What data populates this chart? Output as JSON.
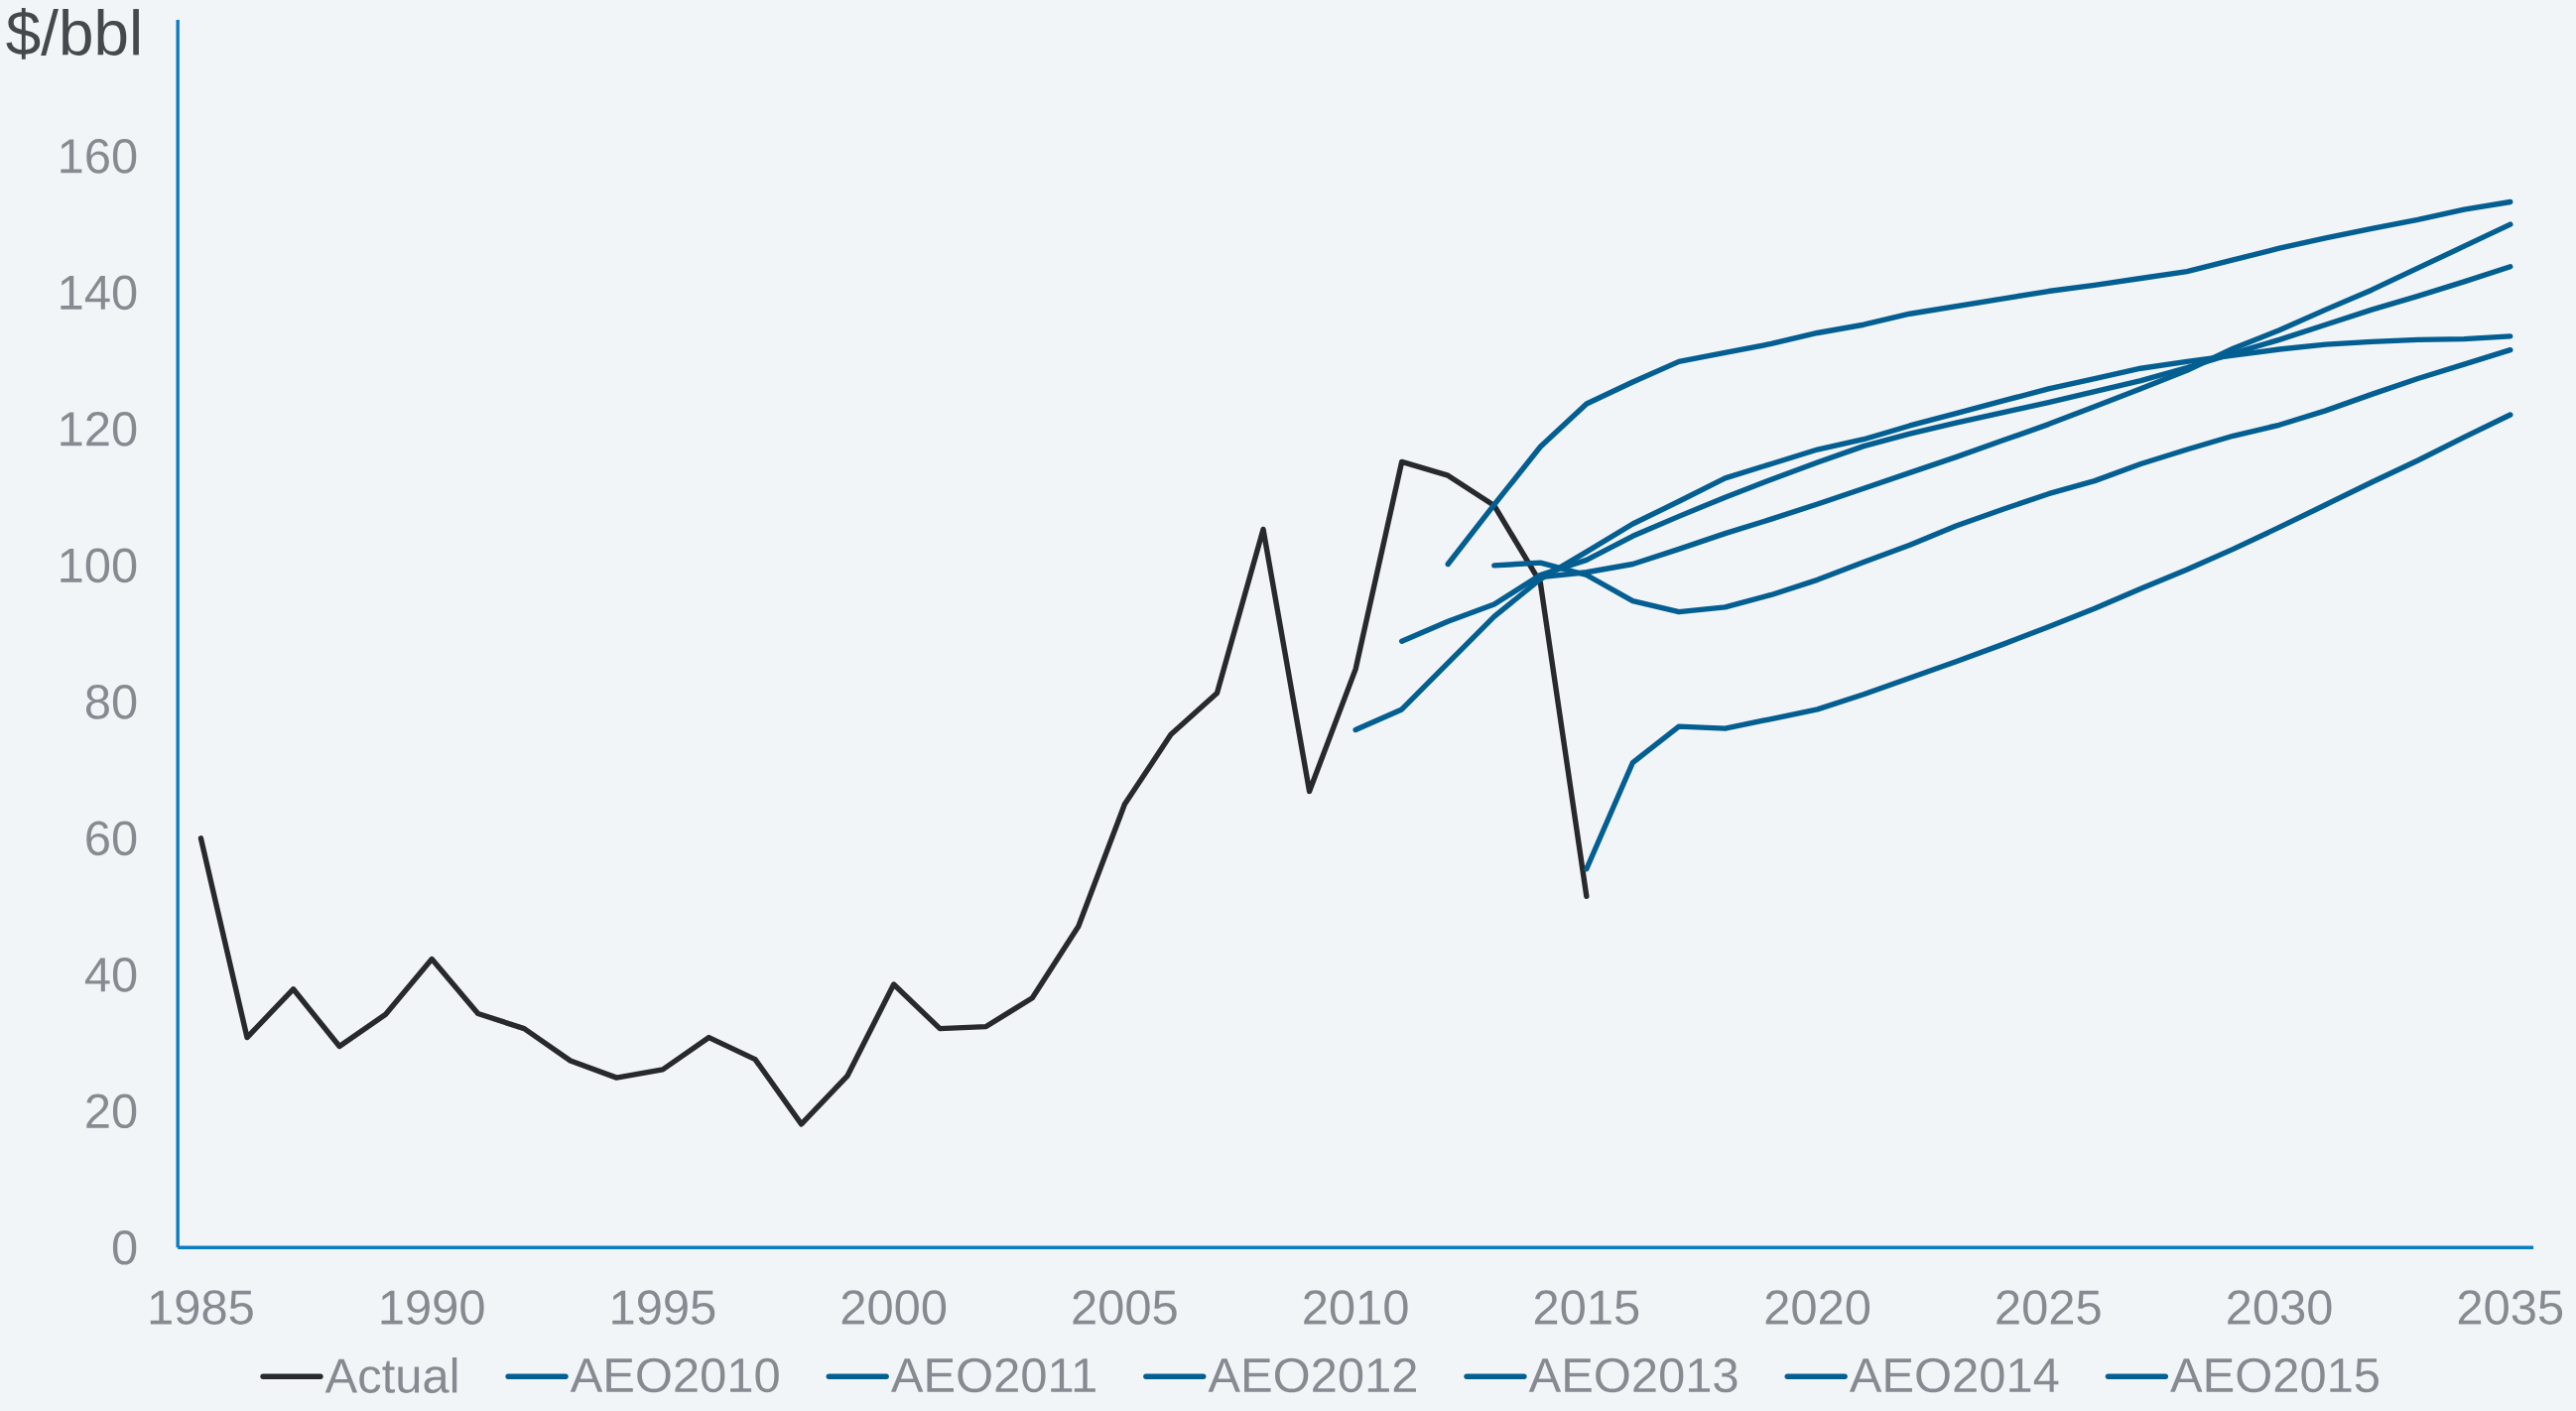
{
  "chart_data": {
    "type": "line",
    "ylabel": "$/bbl",
    "xlim": [
      1984.5,
      2035.5
    ],
    "xticks": [
      1985,
      1990,
      1995,
      2000,
      2005,
      2010,
      2015,
      2020,
      2025,
      2030,
      2035
    ],
    "ylim": [
      0,
      180
    ],
    "yticks": [
      0,
      20,
      40,
      60,
      80,
      100,
      120,
      140,
      160
    ],
    "legend": "bottom",
    "marker": "none",
    "line_style": "solid",
    "series": [
      {
        "name": "Actual",
        "color": "#27292d",
        "x": [
          1985,
          1986,
          1987,
          1988,
          1989,
          1990,
          1991,
          1992,
          1993,
          1994,
          1995,
          1996,
          1997,
          1998,
          1999,
          2000,
          2001,
          2002,
          2003,
          2004,
          2005,
          2006,
          2007,
          2008,
          2009,
          2010,
          2011,
          2012,
          2013,
          2014,
          2015
        ],
        "values": [
          60.0,
          30.8,
          37.9,
          29.5,
          34.2,
          42.3,
          34.3,
          32.1,
          27.4,
          24.9,
          26.1,
          30.8,
          27.6,
          18.1,
          25.2,
          38.6,
          32.1,
          32.4,
          36.6,
          47.1,
          65.0,
          75.2,
          81.3,
          105.3,
          66.9,
          84.8,
          115.2,
          113.2,
          108.8,
          97.5,
          51.5
        ]
      },
      {
        "name": "AEO2010",
        "color": "#035e92",
        "x": [
          2010,
          2011,
          2012,
          2013,
          2014,
          2015,
          2016,
          2017,
          2018,
          2019,
          2020,
          2021,
          2022,
          2023,
          2024,
          2025,
          2026,
          2027,
          2028,
          2029,
          2030,
          2031,
          2032,
          2033,
          2034,
          2035
        ],
        "values": [
          75.9,
          78.9,
          85.7,
          92.5,
          98.0,
          102.0,
          106.1,
          109.4,
          112.8,
          114.9,
          117.0,
          118.5,
          120.5,
          122.3,
          124.1,
          125.9,
          127.4,
          128.9,
          129.9,
          130.8,
          131.7,
          132.4,
          132.8,
          133.1,
          133.2,
          133.6
        ]
      },
      {
        "name": "AEO2011",
        "color": "#035e92",
        "x": [
          2011,
          2012,
          2013,
          2014,
          2015,
          2016,
          2017,
          2018,
          2019,
          2020,
          2021,
          2022,
          2023,
          2024,
          2025,
          2026,
          2027,
          2028,
          2029,
          2030,
          2031,
          2032,
          2033,
          2034,
          2035
        ],
        "values": [
          88.9,
          91.8,
          94.3,
          98.6,
          100.8,
          104.3,
          107.2,
          110.0,
          112.6,
          115.1,
          117.5,
          119.3,
          120.9,
          122.4,
          123.9,
          125.5,
          127.1,
          129.0,
          131.1,
          133.1,
          135.3,
          137.5,
          139.5,
          141.6,
          143.8
        ]
      },
      {
        "name": "AEO2012",
        "color": "#035e92",
        "x": [
          2012,
          2013,
          2014,
          2015,
          2016,
          2017,
          2018,
          2019,
          2020,
          2021,
          2022,
          2023,
          2024,
          2025,
          2026,
          2027,
          2028,
          2029,
          2030,
          2031,
          2032,
          2033,
          2034,
          2035
        ],
        "values": [
          100.2,
          108.9,
          117.4,
          123.7,
          126.9,
          129.9,
          131.2,
          132.5,
          134.1,
          135.3,
          136.9,
          138.0,
          139.1,
          140.2,
          141.1,
          142.1,
          143.1,
          144.8,
          146.5,
          148.0,
          149.4,
          150.7,
          152.2,
          153.3
        ]
      },
      {
        "name": "AEO2013",
        "color": "#035e92",
        "x": [
          2013,
          2014,
          2015,
          2016,
          2017,
          2018,
          2019,
          2020,
          2021,
          2022,
          2023,
          2024,
          2025,
          2026,
          2027,
          2028,
          2029,
          2030,
          2031,
          2032,
          2033,
          2034,
          2035
        ],
        "values": [
          100.0,
          100.4,
          98.6,
          94.8,
          93.2,
          93.9,
          95.7,
          97.9,
          100.5,
          103.0,
          105.8,
          108.2,
          110.5,
          112.4,
          114.9,
          117.0,
          119.0,
          120.6,
          122.7,
          125.1,
          127.4,
          129.5,
          131.6
        ]
      },
      {
        "name": "AEO2014",
        "color": "#035e92",
        "x": [
          2014,
          2015,
          2016,
          2017,
          2018,
          2019,
          2020,
          2021,
          2022,
          2023,
          2024,
          2025,
          2026,
          2027,
          2028,
          2029,
          2030,
          2031,
          2032,
          2033,
          2034,
          2035
        ],
        "values": [
          98.3,
          99.0,
          100.2,
          102.4,
          104.7,
          106.8,
          109.0,
          111.3,
          113.6,
          115.9,
          118.3,
          120.7,
          123.3,
          125.9,
          128.6,
          131.8,
          134.5,
          137.5,
          140.4,
          143.6,
          146.8,
          150.0
        ]
      },
      {
        "name": "AEO2015",
        "color": "#035e92",
        "x": [
          2015,
          2016,
          2017,
          2018,
          2019,
          2020,
          2021,
          2022,
          2023,
          2024,
          2025,
          2026,
          2027,
          2028,
          2029,
          2030,
          2031,
          2032,
          2033,
          2034,
          2035
        ],
        "values": [
          55.5,
          71.1,
          76.4,
          76.1,
          77.5,
          78.9,
          81.1,
          83.5,
          85.9,
          88.4,
          91.0,
          93.7,
          96.6,
          99.4,
          102.4,
          105.6,
          108.9,
          112.2,
          115.4,
          118.8,
          122.1
        ]
      }
    ]
  }
}
